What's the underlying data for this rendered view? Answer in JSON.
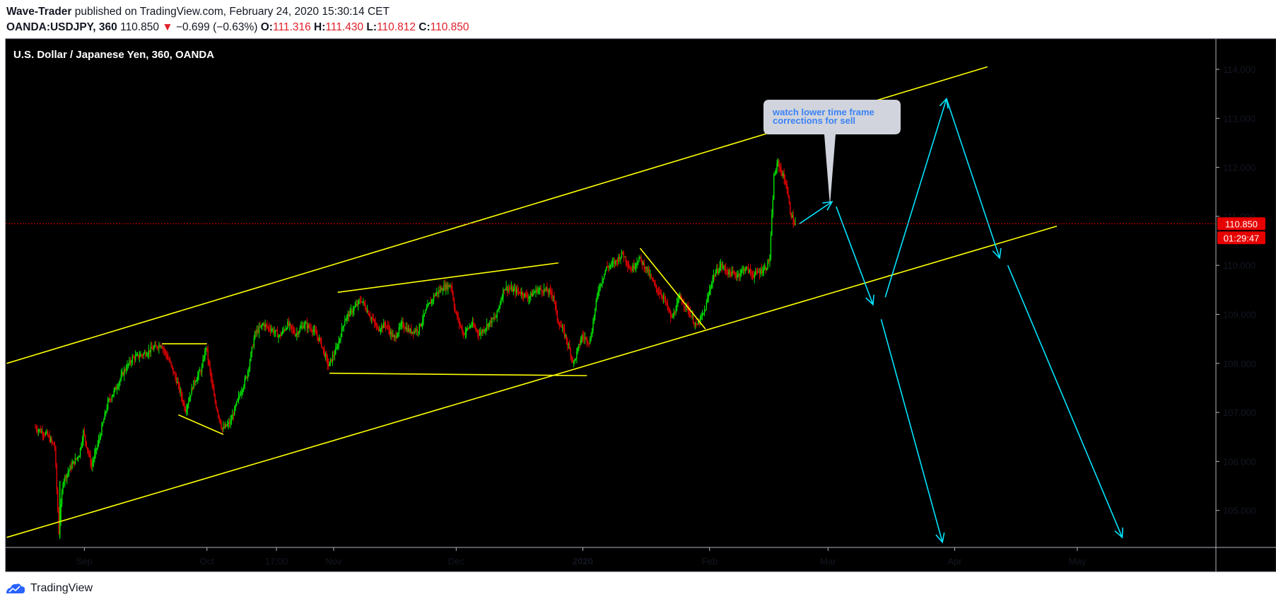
{
  "header": {
    "author": "Wave-Trader",
    "published": "published on TradingView.com, February 24, 2020 15:30:14 CET",
    "symbol": "OANDA:USDJPY, 360",
    "last": "110.850",
    "change_arrow": "▼",
    "change": "−0.699 (−0.63%)",
    "o_label": "O:",
    "o_value": "111.316",
    "h_label": "H:",
    "h_value": "111.430",
    "l_label": "L:",
    "l_value": "110.812",
    "c_label": "C:",
    "c_value": "110.850"
  },
  "chart_title": "U.S. Dollar / Japanese Yen, 360, OANDA",
  "price_badge": "110.850",
  "countdown_badge": "01:29:47",
  "callout_text": [
    "watch lower time frame",
    "corrections for sell"
  ],
  "footer_brand": "TradingView",
  "colors": {
    "background": "#000000",
    "up_candle": "#00e600",
    "down_candle": "#e60000",
    "trendline": "#ffff00",
    "projection": "#00e5ff",
    "price_line": "#e60000",
    "callout_bg": "#d1d4dc",
    "callout_text": "#3b82f6"
  },
  "chart_data": {
    "type": "candlestick",
    "title": "U.S. Dollar / Japanese Yen, 360, OANDA",
    "ylim": [
      104.3,
      114.6
    ],
    "xlim_days": [
      0,
      268
    ],
    "y_ticks": [
      "114.000",
      "113.000",
      "112.000",
      "111.000",
      "110.000",
      "109.000",
      "108.000",
      "107.000",
      "106.000",
      "105.000"
    ],
    "x_ticks": [
      {
        "label": "Sep",
        "day": 12
      },
      {
        "label": "Oct",
        "day": 42
      },
      {
        "label": "17:00",
        "day": 59
      },
      {
        "label": "Nov",
        "day": 73
      },
      {
        "label": "Dec",
        "day": 103
      },
      {
        "label": "2020",
        "day": 134
      },
      {
        "label": "Feb",
        "day": 165
      },
      {
        "label": "Mar",
        "day": 194
      },
      {
        "label": "Apr",
        "day": 225
      },
      {
        "label": "May",
        "day": 255
      }
    ],
    "price_path": [
      [
        0,
        106.7
      ],
      [
        3,
        106.55
      ],
      [
        5,
        106.3
      ],
      [
        6,
        104.55
      ],
      [
        7,
        105.6
      ],
      [
        9,
        105.9
      ],
      [
        11,
        106.15
      ],
      [
        12,
        106.6
      ],
      [
        14,
        105.9
      ],
      [
        16,
        106.5
      ],
      [
        18,
        107.2
      ],
      [
        20,
        107.5
      ],
      [
        22,
        107.85
      ],
      [
        24,
        108.1
      ],
      [
        27,
        108.2
      ],
      [
        29,
        108.3
      ],
      [
        31,
        108.4
      ],
      [
        33,
        108.05
      ],
      [
        35,
        107.6
      ],
      [
        37,
        107.05
      ],
      [
        39,
        107.6
      ],
      [
        41,
        107.9
      ],
      [
        42,
        108.35
      ],
      [
        44,
        107.3
      ],
      [
        46,
        106.65
      ],
      [
        48,
        106.8
      ],
      [
        50,
        107.3
      ],
      [
        52,
        107.75
      ],
      [
        54,
        108.6
      ],
      [
        56,
        108.8
      ],
      [
        58,
        108.7
      ],
      [
        60,
        108.55
      ],
      [
        62,
        108.8
      ],
      [
        64,
        108.6
      ],
      [
        66,
        108.8
      ],
      [
        68,
        108.7
      ],
      [
        70,
        108.45
      ],
      [
        72,
        107.95
      ],
      [
        74,
        108.3
      ],
      [
        76,
        108.9
      ],
      [
        78,
        109.1
      ],
      [
        80,
        109.3
      ],
      [
        82,
        109.0
      ],
      [
        84,
        108.7
      ],
      [
        86,
        108.8
      ],
      [
        88,
        108.5
      ],
      [
        90,
        108.8
      ],
      [
        92,
        108.65
      ],
      [
        94,
        108.7
      ],
      [
        96,
        109.1
      ],
      [
        98,
        109.4
      ],
      [
        100,
        109.55
      ],
      [
        102,
        109.6
      ],
      [
        103,
        109.05
      ],
      [
        105,
        108.6
      ],
      [
        107,
        108.8
      ],
      [
        109,
        108.6
      ],
      [
        111,
        108.8
      ],
      [
        113,
        108.95
      ],
      [
        115,
        109.55
      ],
      [
        117,
        109.5
      ],
      [
        119,
        109.45
      ],
      [
        121,
        109.35
      ],
      [
        123,
        109.5
      ],
      [
        125,
        109.5
      ],
      [
        127,
        109.4
      ],
      [
        128,
        108.9
      ],
      [
        130,
        108.55
      ],
      [
        132,
        108.0
      ],
      [
        134,
        108.55
      ],
      [
        136,
        108.45
      ],
      [
        138,
        109.5
      ],
      [
        140,
        109.95
      ],
      [
        142,
        110.05
      ],
      [
        144,
        110.25
      ],
      [
        146,
        109.9
      ],
      [
        148,
        110.15
      ],
      [
        150,
        109.9
      ],
      [
        152,
        109.55
      ],
      [
        154,
        109.35
      ],
      [
        156,
        108.9
      ],
      [
        158,
        109.35
      ],
      [
        160,
        109.1
      ],
      [
        162,
        108.75
      ],
      [
        164,
        109.05
      ],
      [
        166,
        109.75
      ],
      [
        168,
        110.0
      ],
      [
        170,
        109.85
      ],
      [
        172,
        109.8
      ],
      [
        174,
        109.95
      ],
      [
        176,
        109.8
      ],
      [
        178,
        109.9
      ],
      [
        179,
        109.95
      ],
      [
        180,
        110.15
      ],
      [
        181,
        111.8
      ],
      [
        182,
        112.1
      ],
      [
        184,
        111.65
      ],
      [
        185,
        111.1
      ],
      [
        186,
        110.85
      ]
    ],
    "trendlines": [
      {
        "from": [
          -7,
          108.0
        ],
        "to": [
          233,
          114.05
        ],
        "name": "channel-upper"
      },
      {
        "from": [
          -7,
          104.45
        ],
        "to": [
          250,
          110.8
        ],
        "name": "channel-lower"
      },
      {
        "from": [
          31,
          108.4
        ],
        "to": [
          42,
          108.4
        ],
        "name": "flat-top"
      },
      {
        "from": [
          35,
          106.95
        ],
        "to": [
          46,
          106.55
        ],
        "name": "wedge-bottom"
      },
      {
        "from": [
          72,
          107.8
        ],
        "to": [
          135,
          107.75
        ],
        "name": "range-bottom"
      },
      {
        "from": [
          74,
          109.45
        ],
        "to": [
          128,
          110.05
        ],
        "name": "range-top"
      },
      {
        "from": [
          148,
          110.35
        ],
        "to": [
          164,
          108.7
        ],
        "name": "descending-line"
      }
    ],
    "projections": [
      {
        "points": [
          [
            187,
            110.85
          ],
          [
            195,
            111.3
          ]
        ]
      },
      {
        "points": [
          [
            196,
            111.2
          ],
          [
            205,
            109.2
          ]
        ]
      },
      {
        "points": [
          [
            208,
            109.35
          ],
          [
            223,
            113.4
          ]
        ]
      },
      {
        "points": [
          [
            223,
            113.4
          ],
          [
            236,
            110.15
          ]
        ]
      },
      {
        "points": [
          [
            207,
            108.9
          ],
          [
            222,
            104.35
          ]
        ]
      },
      {
        "points": [
          [
            238,
            110.0
          ],
          [
            266,
            104.45
          ]
        ]
      }
    ],
    "current_price": 110.85
  }
}
